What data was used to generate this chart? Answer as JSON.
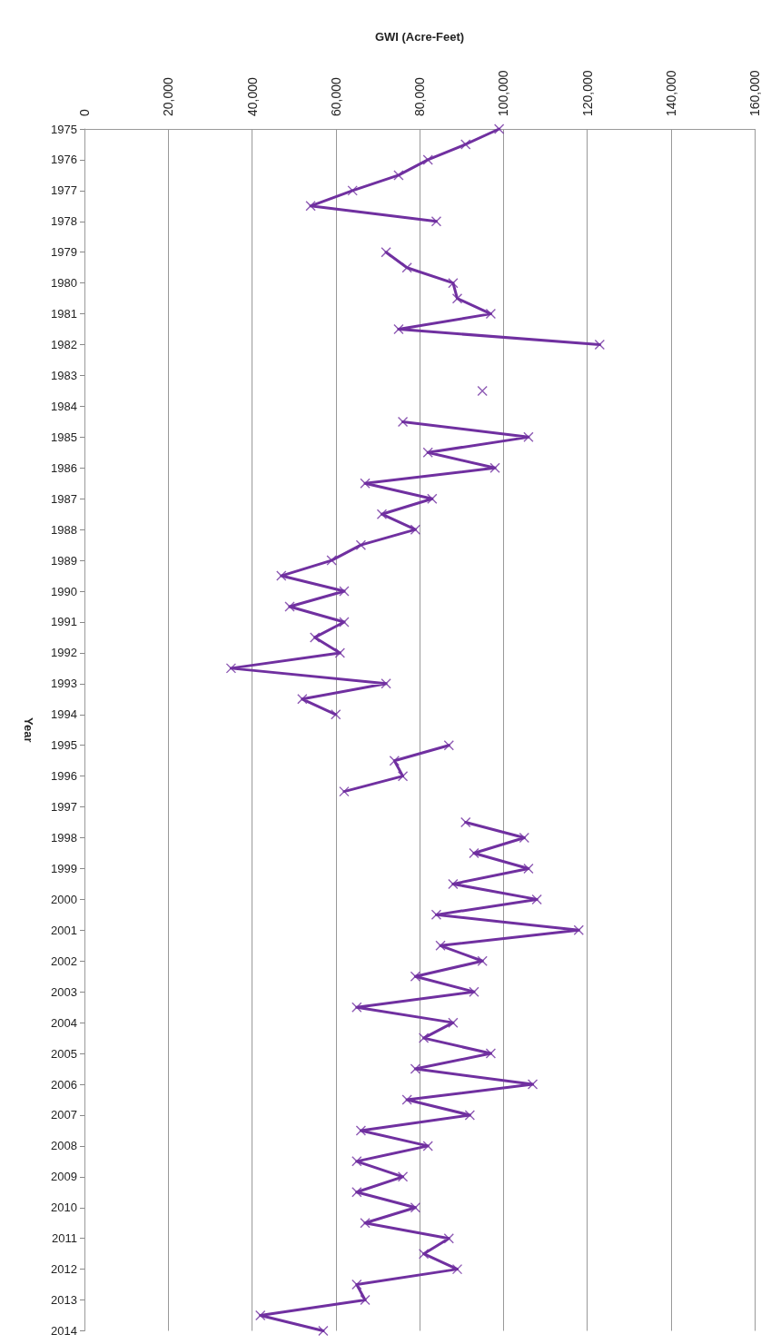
{
  "chart_data": {
    "type": "line",
    "orientation": "horizontal",
    "xlabel": "GWI (Acre-Feet)",
    "ylabel": "Year",
    "x": [
      1975,
      1975.5,
      1976,
      1976.5,
      1977,
      1977.5,
      1978,
      1978.5,
      1979,
      1979.5,
      1980,
      1980.5,
      1981,
      1981.5,
      1982,
      1982.5,
      1983,
      1983.5,
      1984,
      1984.5,
      1985,
      1985.5,
      1986,
      1986.5,
      1987,
      1987.5,
      1988,
      1988.5,
      1989,
      1989.5,
      1990,
      1990.5,
      1991,
      1991.5,
      1992,
      1992.5,
      1993,
      1993.5,
      1994,
      1994.5,
      1995,
      1995.5,
      1996,
      1996.5,
      1997,
      1997.5,
      1998,
      1998.5,
      1999,
      1999.5,
      2000,
      2000.5,
      2001,
      2001.5,
      2002,
      2002.5,
      2003,
      2003.5,
      2004,
      2004.5,
      2005,
      2005.5,
      2006,
      2006.5,
      2007,
      2007.5,
      2008,
      2008.5,
      2009,
      2009.5,
      2010,
      2010.5,
      2011,
      2011.5,
      2012,
      2012.5,
      2013,
      2013.5,
      2014
    ],
    "series": [
      {
        "color": "#7030a0",
        "values": [
          99000,
          91000,
          82000,
          75000,
          64000,
          54000,
          84000,
          null,
          72000,
          77000,
          88000,
          89000,
          97000,
          75000,
          123000,
          null,
          null,
          95000,
          null,
          76000,
          106000,
          82000,
          98000,
          67000,
          83000,
          71000,
          79000,
          66000,
          59000,
          47000,
          62000,
          49000,
          62000,
          55000,
          61000,
          35000,
          72000,
          52000,
          60000,
          null,
          87000,
          74000,
          76000,
          62000,
          null,
          91000,
          105000,
          93000,
          106000,
          88000,
          108000,
          84000,
          118000,
          85000,
          95000,
          79000,
          93000,
          65000,
          88000,
          81000,
          97000,
          79000,
          107000,
          77000,
          92000,
          66000,
          82000,
          65000,
          76000,
          65000,
          79000,
          67000,
          87000,
          81000,
          89000,
          65000,
          67000,
          42000,
          57000
        ]
      }
    ],
    "ylim": [
      2014,
      1975
    ],
    "yticks": [
      1975,
      1976,
      1977,
      1978,
      1979,
      1980,
      1981,
      1982,
      1983,
      1984,
      1985,
      1986,
      1987,
      1988,
      1989,
      1990,
      1991,
      1992,
      1993,
      1994,
      1995,
      1996,
      1997,
      1998,
      1999,
      2000,
      2001,
      2002,
      2003,
      2004,
      2005,
      2006,
      2007,
      2008,
      2009,
      2010,
      2011,
      2012,
      2013,
      2014
    ],
    "xlim": [
      0,
      160000
    ],
    "xticks": [
      {
        "value": 0,
        "label": "0"
      },
      {
        "value": 20000,
        "label": "20,000"
      },
      {
        "value": 40000,
        "label": "40,000"
      },
      {
        "value": 60000,
        "label": "60,000"
      },
      {
        "value": 80000,
        "label": "80,000"
      },
      {
        "value": 100000,
        "label": "100,000"
      },
      {
        "value": 120000,
        "label": "120,000"
      },
      {
        "value": 140000,
        "label": "140,000"
      },
      {
        "value": 160000,
        "label": "160,000"
      }
    ],
    "grid": "x",
    "marker": "cross",
    "line_style": "solid"
  }
}
